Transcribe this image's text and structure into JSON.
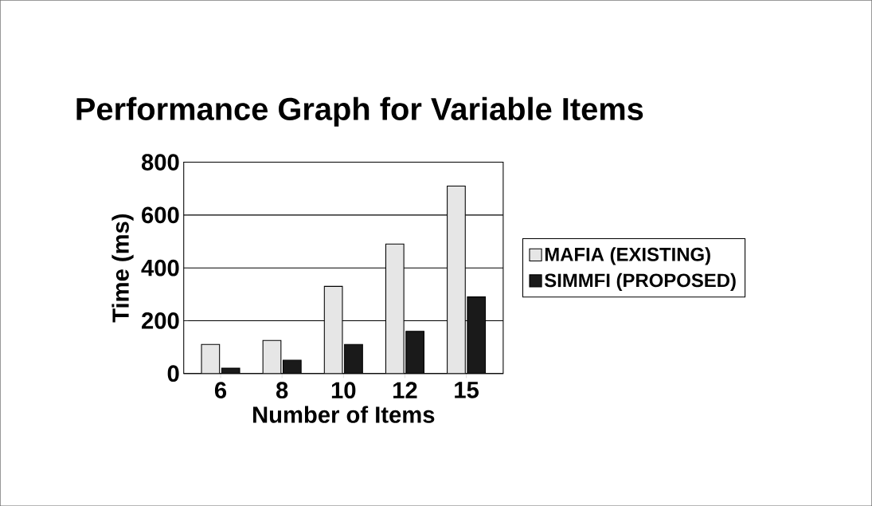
{
  "chart_data": {
    "type": "bar",
    "title": "Performance Graph for Variable Items",
    "xlabel": "Number of Items",
    "ylabel": "Time (ms)",
    "categories": [
      "6",
      "8",
      "10",
      "12",
      "15"
    ],
    "series": [
      {
        "name": "MAFIA (EXISTING)",
        "color": "#e6e6e6",
        "values": [
          110,
          125,
          330,
          490,
          710
        ]
      },
      {
        "name": "SIMMFI (PROPOSED)",
        "color": "#1a1a1a",
        "values": [
          20,
          50,
          110,
          160,
          290
        ]
      }
    ],
    "ylim": [
      0,
      800
    ],
    "yticks": [
      0,
      200,
      400,
      600,
      800
    ],
    "grid": "y",
    "legend": "right"
  }
}
